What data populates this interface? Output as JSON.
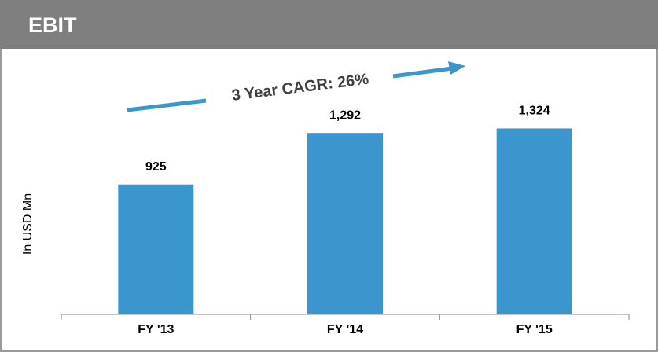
{
  "chart_data": {
    "type": "bar",
    "title": "EBIT",
    "y_axis_label": "In USD Mn",
    "annotation": "3 Year CAGR: 26%",
    "categories": [
      "FY '13",
      "FY '14",
      "FY '15"
    ],
    "values": [
      925,
      1292,
      1324
    ],
    "value_labels": [
      "925",
      "1,292",
      "1,324"
    ],
    "color": "#3a96cc",
    "ylim": [
      0,
      1500
    ]
  }
}
